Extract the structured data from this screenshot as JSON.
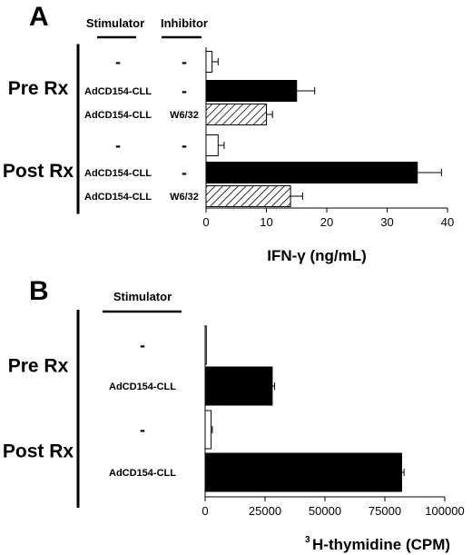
{
  "chart_data": [
    {
      "panel": "A",
      "type": "bar",
      "orientation": "horizontal",
      "column_headers": [
        "Stimulator",
        "Inhibitor"
      ],
      "groups": [
        {
          "label": "Pre Rx",
          "rows": [
            {
              "stimulator": "-",
              "inhibitor": "-",
              "value": 1,
              "error": 1,
              "fill": "white"
            },
            {
              "stimulator": "AdCD154-CLL",
              "inhibitor": "-",
              "value": 15,
              "error": 3,
              "fill": "black"
            },
            {
              "stimulator": "AdCD154-CLL",
              "inhibitor": "W6/32",
              "value": 10,
              "error": 1,
              "fill": "hatched"
            }
          ]
        },
        {
          "label": "Post Rx",
          "rows": [
            {
              "stimulator": "-",
              "inhibitor": "-",
              "value": 2,
              "error": 1,
              "fill": "white"
            },
            {
              "stimulator": "AdCD154-CLL",
              "inhibitor": "-",
              "value": 35,
              "error": 4,
              "fill": "black"
            },
            {
              "stimulator": "AdCD154-CLL",
              "inhibitor": "W6/32",
              "value": 14,
              "error": 2,
              "fill": "hatched"
            }
          ]
        }
      ],
      "xlabel": "IFN-γ (ng/mL)",
      "xlim": [
        0,
        40
      ],
      "xticks": [
        0,
        10,
        20,
        30,
        40
      ],
      "xtick_labels": [
        "0",
        "10",
        "20",
        "30",
        "40"
      ]
    },
    {
      "panel": "B",
      "type": "bar",
      "orientation": "horizontal",
      "column_headers": [
        "Stimulator"
      ],
      "groups": [
        {
          "label": "Pre Rx",
          "rows": [
            {
              "stimulator": "-",
              "value": 500,
              "error": 0,
              "fill": "white"
            },
            {
              "stimulator": "AdCD154-CLL",
              "value": 28000,
              "error": 1000,
              "fill": "black"
            }
          ]
        },
        {
          "label": "Post Rx",
          "rows": [
            {
              "stimulator": "-",
              "value": 2500,
              "error": 500,
              "fill": "white"
            },
            {
              "stimulator": "AdCD154-CLL",
              "value": 82000,
              "error": 1000,
              "fill": "black"
            }
          ]
        }
      ],
      "xlabel_superscript": "3",
      "xlabel": "H-thymidine (CPM)",
      "xlim": [
        0,
        100000
      ],
      "xticks": [
        0,
        25000,
        50000,
        75000,
        100000
      ],
      "xtick_labels": [
        "0",
        "25000",
        "50000",
        "75000",
        "100000"
      ]
    }
  ]
}
